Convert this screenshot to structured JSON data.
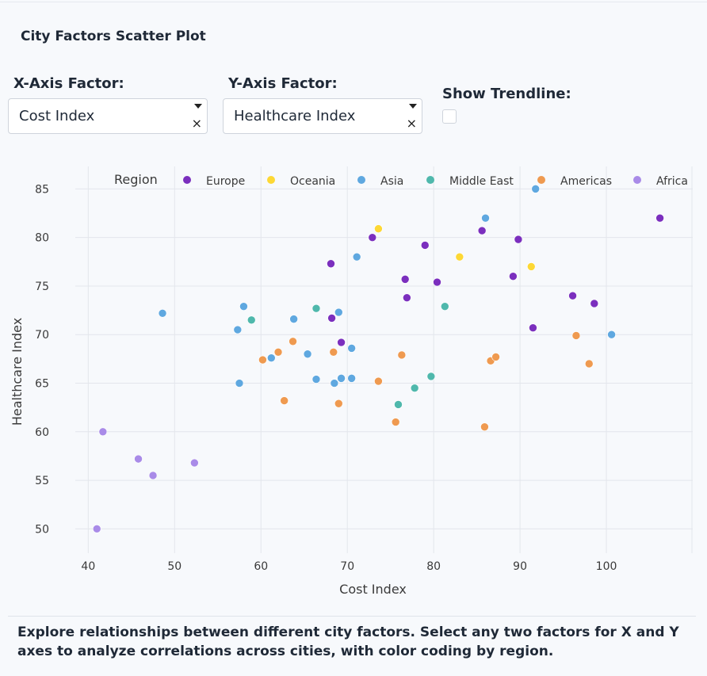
{
  "page": {
    "title": "City Factors Scatter Plot",
    "description": "Explore relationships between different city factors. Select any two factors for X and Y axes to analyze correlations across cities, with color coding by region."
  },
  "controls": {
    "x_axis": {
      "label": "X-Axis Factor:",
      "value": "Cost Index",
      "clear": "×"
    },
    "y_axis": {
      "label": "Y-Axis Factor:",
      "value": "Healthcare Index",
      "clear": "×"
    },
    "trendline": {
      "label": "Show Trendline:",
      "checked": false
    }
  },
  "chart_data": {
    "type": "scatter",
    "xlabel": "Cost Index",
    "ylabel": "Healthcare Index",
    "xlim": [
      38.5,
      110
    ],
    "ylim": [
      47.5,
      86.5
    ],
    "xticks": [
      40,
      50,
      60,
      70,
      80,
      90,
      100
    ],
    "yticks": [
      50,
      55,
      60,
      65,
      70,
      75,
      80,
      85
    ],
    "grid": true,
    "legend": {
      "title": "Region",
      "placement": "top",
      "orientation": "horizontal"
    },
    "series": [
      {
        "name": "Europe",
        "color": "#7b2fbe",
        "points": [
          [
            68.1,
            77.3
          ],
          [
            72.9,
            80.0
          ],
          [
            79.0,
            79.2
          ],
          [
            76.7,
            75.7
          ],
          [
            80.4,
            75.4
          ],
          [
            76.9,
            73.8
          ],
          [
            68.2,
            71.7
          ],
          [
            69.3,
            69.2
          ],
          [
            85.6,
            80.7
          ],
          [
            89.8,
            79.8
          ],
          [
            89.2,
            76.0
          ],
          [
            91.5,
            70.7
          ],
          [
            96.1,
            74.0
          ],
          [
            98.6,
            73.2
          ],
          [
            106.2,
            82.0
          ]
        ]
      },
      {
        "name": "Oceania",
        "color": "#fdd835",
        "points": [
          [
            73.6,
            80.9
          ],
          [
            83.0,
            78.0
          ],
          [
            91.3,
            77.0
          ]
        ]
      },
      {
        "name": "Asia",
        "color": "#5fa8e0",
        "points": [
          [
            48.6,
            72.2
          ],
          [
            58.0,
            72.9
          ],
          [
            57.3,
            70.5
          ],
          [
            57.5,
            65.0
          ],
          [
            61.2,
            67.6
          ],
          [
            63.8,
            71.6
          ],
          [
            65.4,
            68.0
          ],
          [
            66.4,
            65.4
          ],
          [
            68.5,
            65.0
          ],
          [
            69.3,
            65.5
          ],
          [
            70.5,
            65.5
          ],
          [
            69.0,
            72.3
          ],
          [
            70.5,
            68.6
          ],
          [
            71.1,
            78.0
          ],
          [
            86.0,
            82.0
          ],
          [
            91.8,
            85.0
          ],
          [
            100.6,
            70.0
          ]
        ]
      },
      {
        "name": "Middle East",
        "color": "#4fb8ac",
        "points": [
          [
            58.9,
            71.5
          ],
          [
            66.4,
            72.7
          ],
          [
            75.9,
            62.8
          ],
          [
            77.8,
            64.5
          ],
          [
            79.7,
            65.7
          ],
          [
            81.3,
            72.9
          ]
        ]
      },
      {
        "name": "Americas",
        "color": "#ef9a50",
        "points": [
          [
            60.2,
            67.4
          ],
          [
            62.0,
            68.2
          ],
          [
            62.7,
            63.2
          ],
          [
            63.7,
            69.3
          ],
          [
            68.4,
            68.2
          ],
          [
            69.0,
            62.9
          ],
          [
            73.6,
            65.2
          ],
          [
            75.6,
            61.0
          ],
          [
            76.3,
            67.9
          ],
          [
            85.9,
            60.5
          ],
          [
            86.6,
            67.3
          ],
          [
            87.2,
            67.7
          ],
          [
            96.5,
            69.9
          ],
          [
            98.0,
            67.0
          ]
        ]
      },
      {
        "name": "Africa",
        "color": "#a98be8",
        "points": [
          [
            41.0,
            50.0
          ],
          [
            41.7,
            60.0
          ],
          [
            45.8,
            57.2
          ],
          [
            47.5,
            55.5
          ],
          [
            52.3,
            56.8
          ]
        ]
      }
    ]
  }
}
